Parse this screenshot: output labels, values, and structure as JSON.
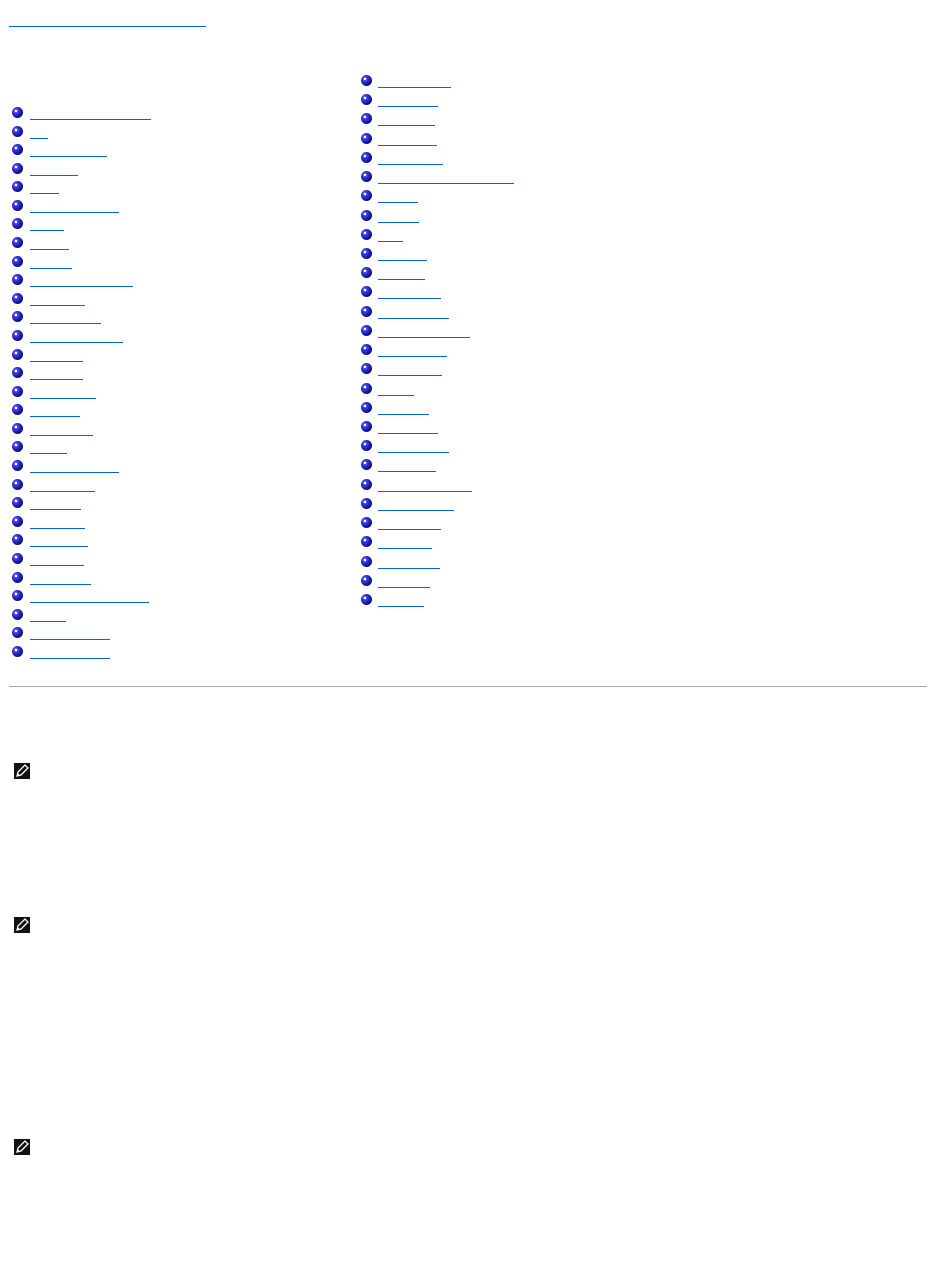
{
  "colors": {
    "link": "#0066cc",
    "bullet": "#1a1aa0",
    "rule": "#aaaaaa",
    "note_icon_bg": "#111111"
  },
  "icons": {
    "bullet": "bullet-sphere-icon",
    "note": "pencil-note-icon"
  },
  "notes": [
    {
      "icon": "pencil-note-icon"
    },
    {
      "icon": "pencil-note-icon"
    },
    {
      "icon": "pencil-note-icon"
    }
  ]
}
